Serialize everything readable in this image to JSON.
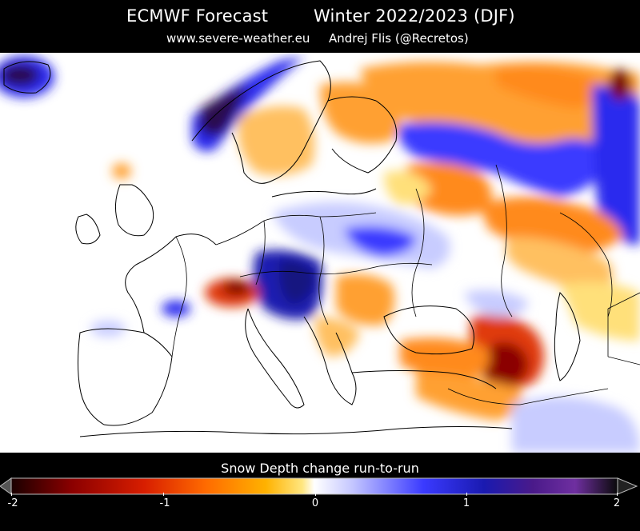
{
  "header": {
    "title_left": "ECMWF Forecast",
    "title_right": "Winter 2022/2023 (DJF)",
    "subtitle_left": "www.severe-weather.eu",
    "subtitle_right": "Andrej Flis (@Recretos)"
  },
  "legend": {
    "title": "Snow Depth change run-to-run",
    "ticks": [
      "-2",
      "-1",
      "0",
      "1",
      "2"
    ],
    "colors": [
      "#1a0000",
      "#8b0000",
      "#d81e00",
      "#ff6a00",
      "#ffa500",
      "#ffe066",
      "#ffffff",
      "#c7c9ff",
      "#3a3aff",
      "#1a1ab0",
      "#4a1a8a",
      "#6f2fa0",
      "#0a0a0a"
    ]
  },
  "map": {
    "region": "Europe",
    "coastline_color": "#000000",
    "colors": {
      "deep_negative": "#7a0000",
      "negative": "#e03a10",
      "mild_negative": "#ffa030",
      "slight_negative": "#ffe07a",
      "neutral": "#ffffff",
      "slight_positive": "#c8ccff",
      "positive": "#2a2aee",
      "strong_positive": "#141480",
      "extreme_positive": "#2a1050"
    }
  }
}
